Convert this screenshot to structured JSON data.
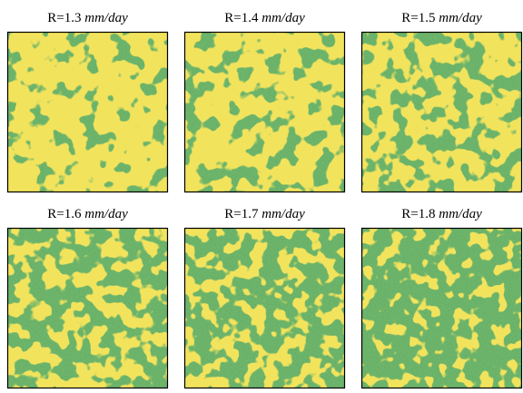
{
  "panels": [
    {
      "label": "R=1.3",
      "unit": "mm/day"
    },
    {
      "label": "R=1.4",
      "unit": "mm/day"
    },
    {
      "label": "R=1.5",
      "unit": "mm/day"
    },
    {
      "label": "R=1.6",
      "unit": "mm/day"
    },
    {
      "label": "R=1.7",
      "unit": "mm/day"
    },
    {
      "label": "R=1.8",
      "unit": "mm/day"
    }
  ]
}
